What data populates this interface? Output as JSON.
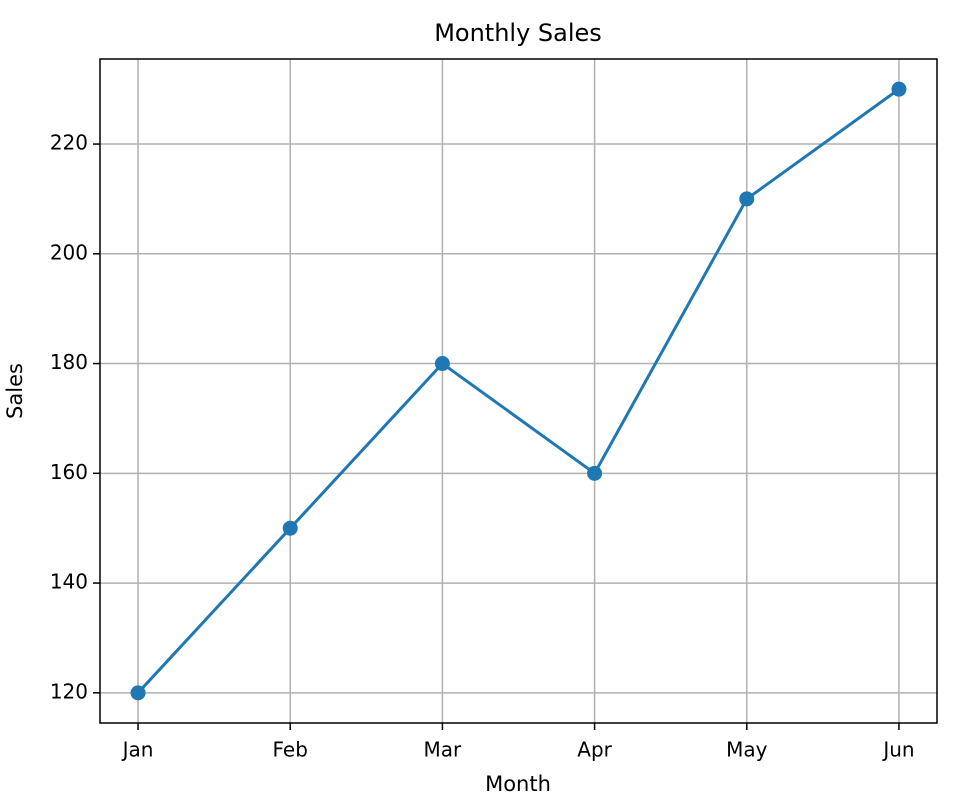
{
  "chart_data": {
    "type": "line",
    "title": "Monthly Sales",
    "x_label": "Month",
    "y_label": "Sales",
    "categories": [
      "Jan",
      "Feb",
      "Mar",
      "Apr",
      "May",
      "Jun"
    ],
    "series": [
      {
        "name": "Sales",
        "color": "#1f77b4",
        "values": [
          120,
          150,
          180,
          160,
          210,
          230
        ]
      }
    ],
    "ylim": [
      114.5,
      235.5
    ],
    "yticks": [
      120,
      140,
      160,
      180,
      200,
      220
    ],
    "grid": true
  }
}
